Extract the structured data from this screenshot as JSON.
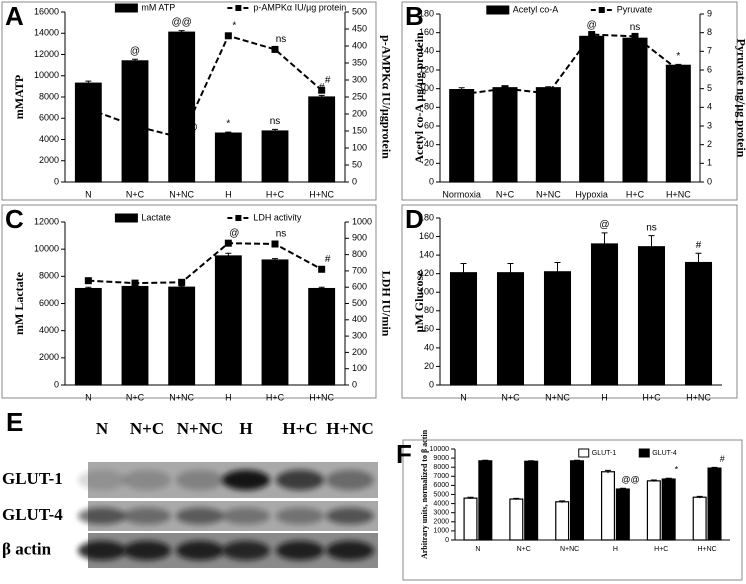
{
  "chart_data": [
    {
      "type": "combo",
      "panel": "A",
      "categories": [
        "N",
        "N+C",
        "N+NC",
        "H",
        "H+C",
        "H+NC"
      ],
      "ylabel": "mMATP",
      "y2label": "p-AMPKα IU/µgprotein",
      "ylim": [
        0,
        16000
      ],
      "yticks": [
        0,
        2000,
        4000,
        6000,
        8000,
        10000,
        12000,
        14000,
        16000
      ],
      "y2lim": [
        0,
        500
      ],
      "y2ticks": [
        0,
        50,
        100,
        150,
        200,
        250,
        300,
        350,
        400,
        450,
        500
      ],
      "series": [
        {
          "name": "mM ATP",
          "color": "#000000",
          "values": [
            9300,
            11400,
            14100,
            4600,
            4800,
            8000
          ],
          "errors": [
            200,
            150,
            150,
            100,
            150,
            150
          ],
          "marks": [
            null,
            "@",
            "@@",
            "*",
            "ns",
            "#"
          ]
        },
        {
          "name": "p-AMPKα IU/µg protein",
          "color": "#000000",
          "axis": "y2",
          "values": [
            215,
            165,
            130,
            430,
            390,
            270
          ],
          "marks": [
            null,
            "@",
            "@@",
            "*",
            "ns",
            "#"
          ]
        }
      ]
    },
    {
      "type": "combo",
      "panel": "B",
      "categories": [
        "Normoxia",
        "N+C",
        "N+NC",
        "Hypoxia",
        "H+C",
        "H+NC"
      ],
      "ylabel": "Acetyl co-A µg/µg protein",
      "y2label": "Pyruvate ng/µg protein",
      "ylim": [
        0,
        180
      ],
      "yticks": [
        0,
        20,
        40,
        60,
        80,
        100,
        120,
        140,
        160,
        180
      ],
      "y2lim": [
        0,
        9
      ],
      "y2ticks": [
        0,
        1,
        2,
        3,
        4,
        5,
        6,
        7,
        8,
        9
      ],
      "series": [
        {
          "name": "Acetyl co-A",
          "color": "#000000",
          "values": [
            99,
            101,
            101,
            156,
            154,
            125
          ],
          "errors": [
            2,
            1,
            1,
            3,
            3,
            1
          ],
          "marks": [
            null,
            null,
            null,
            "@",
            "ns",
            "*"
          ]
        },
        {
          "name": "Pyruvate",
          "color": "#000000",
          "axis": "y2",
          "values": [
            4.7,
            5.0,
            4.75,
            7.9,
            7.8,
            6.0
          ]
        }
      ]
    },
    {
      "type": "combo",
      "panel": "C",
      "categories": [
        "N",
        "N+C",
        "N+NC",
        "H",
        "H+C",
        "H+NC"
      ],
      "ylabel": "mM Lactate",
      "y2label": "LDH IU/min",
      "ylim": [
        0,
        12000
      ],
      "yticks": [
        0,
        2000,
        4000,
        6000,
        8000,
        10000,
        12000
      ],
      "y2lim": [
        0,
        1000
      ],
      "y2ticks": [
        0,
        100,
        200,
        300,
        400,
        500,
        600,
        700,
        800,
        900,
        1000
      ],
      "series": [
        {
          "name": "Lactate",
          "color": "#000000",
          "values": [
            7100,
            7250,
            7200,
            9500,
            9200,
            7100
          ],
          "errors": [
            100,
            150,
            100,
            200,
            100,
            100
          ]
        },
        {
          "name": "LDH activity",
          "color": "#000000",
          "axis": "y2",
          "values": [
            640,
            625,
            630,
            870,
            865,
            710
          ],
          "marks": [
            null,
            null,
            null,
            "@",
            "ns",
            "#"
          ]
        }
      ]
    },
    {
      "type": "bar",
      "panel": "D",
      "categories": [
        "N",
        "N+C",
        "N+NC",
        "H",
        "H+C",
        "H+NC"
      ],
      "ylabel": "µM Glucose",
      "ylim": [
        0,
        180
      ],
      "yticks": [
        0,
        20,
        40,
        60,
        80,
        100,
        120,
        140,
        160,
        180
      ],
      "series": [
        {
          "color": "#000000",
          "values": [
            121,
            121,
            122,
            152,
            149,
            132
          ],
          "errors": [
            10,
            10,
            10,
            12,
            12,
            10
          ],
          "marks": [
            null,
            null,
            null,
            "@",
            "ns",
            "#"
          ]
        }
      ]
    },
    {
      "type": "grouped",
      "panel": "F",
      "categories": [
        "N",
        "N+C",
        "N+NC",
        "H",
        "H+C",
        "H+NC"
      ],
      "ylabel": "Arbitrary units, normalized to β actin",
      "ylim": [
        0,
        10000
      ],
      "yticks": [
        0,
        1000,
        2000,
        3000,
        4000,
        5000,
        6000,
        7000,
        8000,
        9000,
        10000
      ],
      "series": [
        {
          "name": "GLUT-1",
          "color": "#ffffff",
          "values": [
            4600,
            4500,
            4200,
            7500,
            6500,
            4700
          ],
          "errors": [
            100,
            80,
            100,
            150,
            100,
            100
          ]
        },
        {
          "name": "GLUT-4",
          "color": "#000000",
          "values": [
            8700,
            8650,
            8700,
            5600,
            6700,
            7900
          ],
          "errors": [
            60,
            60,
            60,
            80,
            80,
            80
          ],
          "marks": [
            null,
            null,
            null,
            "@@",
            "*",
            "#"
          ]
        }
      ]
    }
  ],
  "blot": {
    "panel": "E",
    "lanes": [
      "N",
      "N+C",
      "N+NC",
      "H",
      "H+C",
      "H+NC"
    ],
    "rows": [
      "GLUT-1",
      "GLUT-4",
      "β actin"
    ]
  }
}
